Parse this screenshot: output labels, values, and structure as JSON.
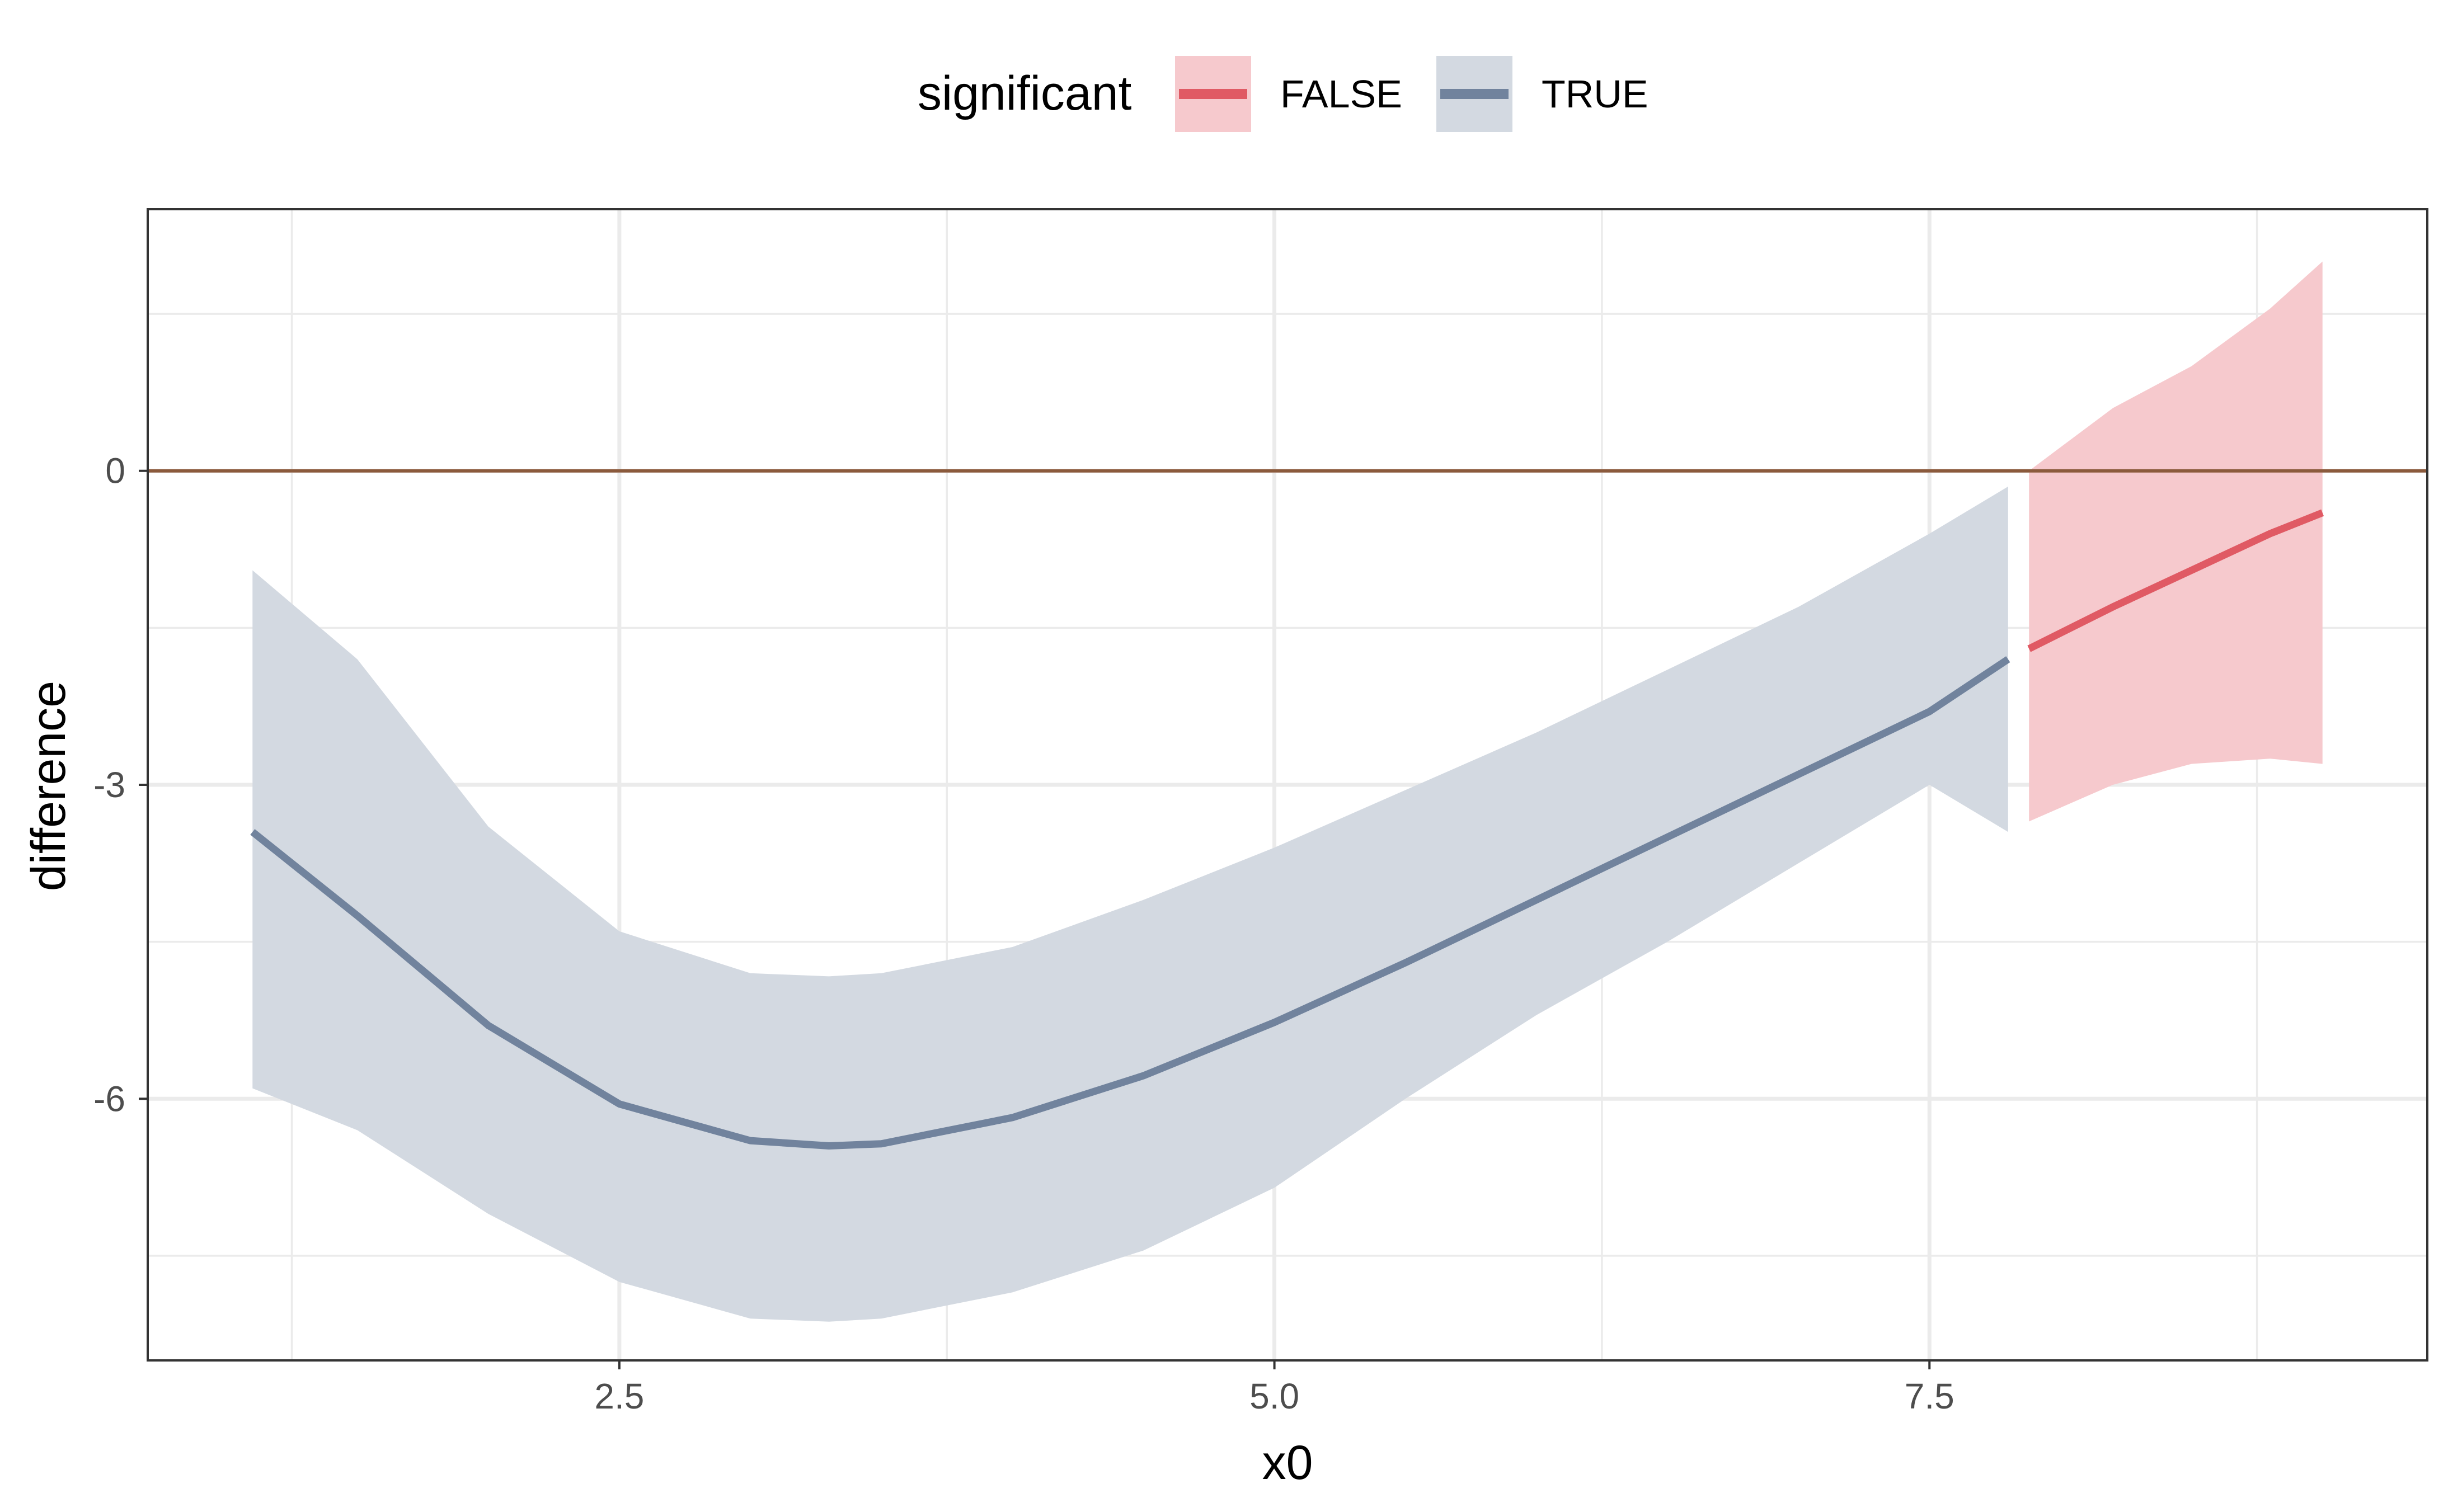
{
  "chart_data": {
    "type": "line",
    "title": "",
    "xlabel": "x0",
    "ylabel": "difference",
    "xlim": [
      0.7,
      9.4
    ],
    "ylim": [
      -8.5,
      2.5
    ],
    "x_ticks": [
      2.5,
      5.0,
      7.5
    ],
    "x_tick_labels": [
      "2.5",
      "5.0",
      "7.5"
    ],
    "x_minor_ticks": [
      1.25,
      3.75,
      6.25,
      8.75
    ],
    "y_ticks": [
      0,
      -3,
      -6
    ],
    "y_tick_labels": [
      "0",
      "-3",
      "-6"
    ],
    "y_minor_ticks": [
      1.5,
      -1.5,
      -4.5,
      -7.5
    ],
    "grid": true,
    "reference_line": {
      "y": 0,
      "color": "#8b5a3c"
    },
    "legend": {
      "title": "significant",
      "position": "top",
      "entries": [
        {
          "label": "FALSE",
          "line_color": "#e05a64",
          "fill_color": "#f6c9cd"
        },
        {
          "label": "TRUE",
          "line_color": "#71839d",
          "fill_color": "#d3d9e1"
        }
      ]
    },
    "series": [
      {
        "name": "TRUE",
        "color": "#71839d",
        "fill": "#d3d9e1",
        "x": [
          1.1,
          1.5,
          2.0,
          2.5,
          3.0,
          3.3,
          3.5,
          4.0,
          4.5,
          5.0,
          5.5,
          6.0,
          6.5,
          7.0,
          7.5,
          7.8
        ],
        "y": [
          -3.45,
          -4.25,
          -5.3,
          -6.05,
          -6.4,
          -6.45,
          -6.43,
          -6.18,
          -5.78,
          -5.27,
          -4.7,
          -4.1,
          -3.5,
          -2.9,
          -2.3,
          -1.8
        ],
        "lower": [
          -5.9,
          -6.3,
          -7.1,
          -7.75,
          -8.1,
          -8.13,
          -8.1,
          -7.85,
          -7.45,
          -6.85,
          -6.0,
          -5.2,
          -4.5,
          -3.75,
          -3.0,
          -3.45
        ],
        "upper": [
          -0.95,
          -1.8,
          -3.4,
          -4.4,
          -4.8,
          -4.83,
          -4.8,
          -4.55,
          -4.1,
          -3.6,
          -3.05,
          -2.5,
          -1.9,
          -1.3,
          -0.6,
          -0.15
        ]
      },
      {
        "name": "FALSE",
        "color": "#e05a64",
        "fill": "#f6c9cd",
        "x": [
          7.88,
          8.2,
          8.5,
          8.8,
          9.0
        ],
        "y": [
          -1.7,
          -1.3,
          -0.95,
          -0.6,
          -0.4
        ],
        "lower": [
          -3.35,
          -3.0,
          -2.8,
          -2.75,
          -2.8
        ],
        "upper": [
          0.0,
          0.6,
          1.0,
          1.55,
          2.0
        ]
      }
    ]
  }
}
